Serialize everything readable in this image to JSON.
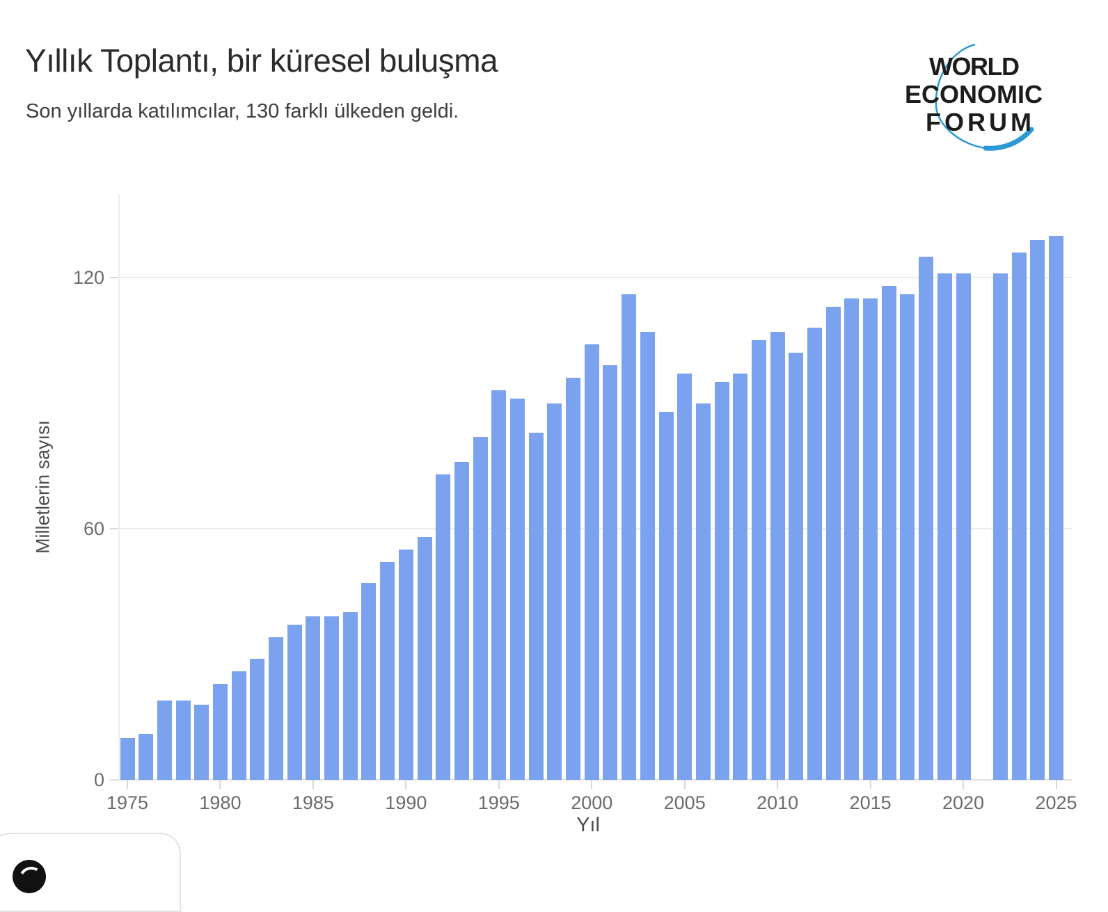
{
  "chart_data": {
    "type": "bar",
    "title": "Yıllık Toplantı, bir küresel buluşma",
    "subtitle": "Son yıllarda katılımcılar, 130 farklı ülkeden geldi.",
    "xlabel": "Yıl",
    "ylabel": "Milletlerin sayısı",
    "x": [
      1975,
      1976,
      1977,
      1978,
      1979,
      1980,
      1981,
      1982,
      1983,
      1984,
      1985,
      1986,
      1987,
      1988,
      1989,
      1990,
      1991,
      1992,
      1993,
      1994,
      1995,
      1996,
      1997,
      1998,
      1999,
      2000,
      2001,
      2002,
      2003,
      2004,
      2005,
      2006,
      2007,
      2008,
      2009,
      2010,
      2011,
      2012,
      2013,
      2014,
      2015,
      2016,
      2017,
      2018,
      2019,
      2020,
      2021,
      2022,
      2023,
      2024,
      2025
    ],
    "values": [
      10,
      11,
      19,
      19,
      18,
      23,
      26,
      29,
      34,
      37,
      39,
      39,
      40,
      47,
      52,
      55,
      58,
      73,
      76,
      82,
      93,
      91,
      83,
      90,
      96,
      104,
      99,
      116,
      107,
      88,
      97,
      90,
      95,
      97,
      105,
      107,
      102,
      108,
      113,
      115,
      115,
      118,
      116,
      125,
      121,
      121,
      null,
      121,
      126,
      129,
      130
    ],
    "yticks": [
      0,
      60,
      120
    ],
    "xticks": [
      1975,
      1980,
      1985,
      1990,
      1995,
      2000,
      2005,
      2010,
      2015,
      2020,
      2025
    ],
    "ylim": [
      0,
      132
    ],
    "grid": "horizontal",
    "legend": "none",
    "bar_color": "#7BA2EE"
  },
  "logo": {
    "lines": [
      "WORLD",
      "ECONOMIC",
      "FORUM"
    ],
    "text_color": "#1c1c1c",
    "arc_color": "#2a99d4"
  }
}
